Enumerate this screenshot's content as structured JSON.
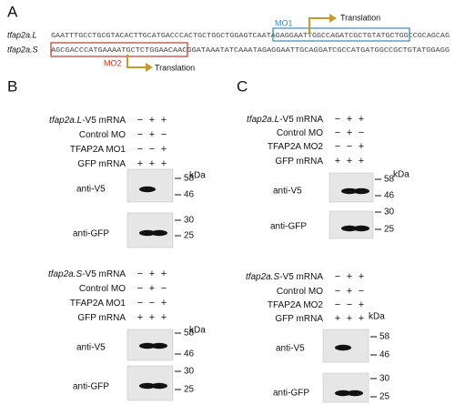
{
  "panel_a": {
    "label": "A",
    "sequences": [
      {
        "name": "tfap2a.L",
        "sequence": "GAATTTGCCTGCGTACACTTGCATGACCCACTGCTGGCTGGAGTCAATAGAGGAATTGGCCAGATCGCTGTATGCTGGCCGCAGCAG"
      },
      {
        "name": "tfap2a.S",
        "sequence": "AGCGACCCATGAAAATGCTCTGGAACAACGGATAAATATCAAATAGAGGAATTGCAGGATCGCCATGATGGCCGCTGTATGGAGG"
      }
    ],
    "mo1": "MO1",
    "mo2": "MO2",
    "translation_l": "Translation",
    "translation_s": "Translation"
  },
  "panel_b": {
    "label": "B",
    "blots": [
      {
        "rows": [
          {
            "gene": "tfap2a.L",
            "label": "-V5 mRNA",
            "marks": [
              "−",
              "+",
              "+"
            ]
          },
          {
            "label": "Control MO",
            "marks": [
              "−",
              "+",
              "−"
            ]
          },
          {
            "label": "TFAP2A MO1",
            "marks": [
              "−",
              "−",
              "+"
            ]
          },
          {
            "label": "GFP mRNA",
            "marks": [
              "+",
              "+",
              "+"
            ]
          }
        ],
        "unit": "kDa",
        "antibodies": [
          {
            "name": "anti-V5",
            "markers": [
              "58",
              "46"
            ]
          },
          {
            "name": "anti-GFP",
            "markers": [
              "30",
              "25"
            ]
          }
        ]
      },
      {
        "rows": [
          {
            "gene": "tfap2a.S",
            "label": "-V5 mRNA",
            "marks": [
              "−",
              "+",
              "+"
            ]
          },
          {
            "label": "Control MO",
            "marks": [
              "−",
              "+",
              "−"
            ]
          },
          {
            "label": "TFAP2A MO1",
            "marks": [
              "−",
              "−",
              "+"
            ]
          },
          {
            "label": "GFP mRNA",
            "marks": [
              "+",
              "+",
              "+"
            ]
          }
        ],
        "unit": "kDa",
        "antibodies": [
          {
            "name": "anti-V5",
            "markers": [
              "58",
              "46"
            ]
          },
          {
            "name": "anti-GFP",
            "markers": [
              "30",
              "25"
            ]
          }
        ]
      }
    ]
  },
  "panel_c": {
    "label": "C",
    "blots": [
      {
        "rows": [
          {
            "gene": "tfap2a.L",
            "label": "-V5 mRNA",
            "marks": [
              "−",
              "+",
              "+"
            ]
          },
          {
            "label": "Control MO",
            "marks": [
              "−",
              "+",
              "−"
            ]
          },
          {
            "label": "TFAP2A MO2",
            "marks": [
              "−",
              "−",
              "+"
            ]
          },
          {
            "label": "GFP mRNA",
            "marks": [
              "+",
              "+",
              "+"
            ]
          }
        ],
        "unit": "kDa",
        "antibodies": [
          {
            "name": "anti-V5",
            "markers": [
              "58",
              "46"
            ]
          },
          {
            "name": "anti-GFP",
            "markers": [
              "30",
              "25"
            ]
          }
        ]
      },
      {
        "rows": [
          {
            "gene": "tfap2a.S",
            "label": "-V5 mRNA",
            "marks": [
              "−",
              "+",
              "+"
            ]
          },
          {
            "label": "Control MO",
            "marks": [
              "−",
              "+",
              "−"
            ]
          },
          {
            "label": "TFAP2A MO2",
            "marks": [
              "−",
              "−",
              "+"
            ]
          },
          {
            "label": "GFP mRNA",
            "marks": [
              "+",
              "+",
              "+"
            ]
          }
        ],
        "unit": "kDa",
        "antibodies": [
          {
            "name": "anti-V5",
            "markers": [
              "58",
              "46"
            ]
          },
          {
            "name": "anti-GFP",
            "markers": [
              "30",
              "25"
            ]
          }
        ]
      }
    ]
  }
}
